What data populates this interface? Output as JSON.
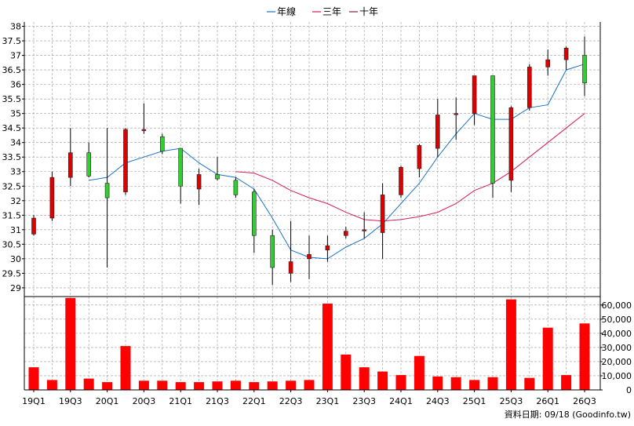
{
  "legend": [
    {
      "name": "年線",
      "color": "#1a73c8"
    },
    {
      "name": "三年",
      "color": "#d81b60"
    },
    {
      "name": "十年",
      "color": "#8b1a4a"
    }
  ],
  "footer_text": "資料日期: 09/18 (Goodinfo.tw)",
  "colors": {
    "up": "#dd0000",
    "down": "#33cc33",
    "volume": "#ff0000",
    "grid": "#999999",
    "frame": "#000000"
  },
  "chart_data": [
    {
      "type": "candlestick",
      "y_ticks": [
        29,
        29.5,
        30,
        30.5,
        31,
        31.5,
        32,
        32.5,
        33,
        33.5,
        34,
        34.5,
        35,
        35.5,
        36,
        36.5,
        37,
        37.5,
        38
      ],
      "ylim": [
        28.7,
        38.15
      ],
      "x_tick_labels": [
        "19Q1",
        "19Q3",
        "20Q1",
        "20Q3",
        "21Q1",
        "21Q3",
        "22Q1",
        "22Q3",
        "23Q1",
        "23Q3",
        "24Q1",
        "24Q3",
        "25Q1",
        "25Q3",
        "26Q1",
        "26Q3"
      ],
      "periods": [
        "19Q1",
        "19Q2",
        "19Q3",
        "19Q4",
        "20Q1",
        "20Q2",
        "20Q3",
        "20Q4",
        "21Q1",
        "21Q2",
        "21Q3",
        "21Q4",
        "22Q1",
        "22Q2",
        "22Q3",
        "22Q4",
        "23Q1",
        "23Q2",
        "23Q3",
        "23Q4",
        "24Q1",
        "24Q2",
        "24Q3",
        "24Q4",
        "25Q1",
        "25Q2",
        "25Q3",
        "25Q4",
        "26Q1",
        "26Q2",
        "26Q3"
      ],
      "candles": [
        {
          "o": 30.85,
          "h": 31.5,
          "l": 30.8,
          "c": 31.4
        },
        {
          "o": 31.4,
          "h": 33.0,
          "l": 31.3,
          "c": 32.8
        },
        {
          "o": 32.8,
          "h": 34.5,
          "l": 32.5,
          "c": 33.65
        },
        {
          "o": 33.65,
          "h": 34.0,
          "l": 32.8,
          "c": 32.85
        },
        {
          "o": 32.6,
          "h": 34.5,
          "l": 29.7,
          "c": 32.1
        },
        {
          "o": 32.3,
          "h": 34.5,
          "l": 32.2,
          "c": 34.45
        },
        {
          "o": 34.45,
          "h": 35.35,
          "l": 34.3,
          "c": 34.45
        },
        {
          "o": 34.2,
          "h": 34.3,
          "l": 33.6,
          "c": 33.7
        },
        {
          "o": 33.8,
          "h": 33.8,
          "l": 31.9,
          "c": 32.5
        },
        {
          "o": 32.4,
          "h": 33.1,
          "l": 31.85,
          "c": 32.9
        },
        {
          "o": 32.9,
          "h": 33.5,
          "l": 32.7,
          "c": 32.75
        },
        {
          "o": 32.7,
          "h": 32.8,
          "l": 32.1,
          "c": 32.2
        },
        {
          "o": 32.3,
          "h": 32.4,
          "l": 30.2,
          "c": 30.8
        },
        {
          "o": 30.8,
          "h": 31.0,
          "l": 29.1,
          "c": 29.7
        },
        {
          "o": 29.5,
          "h": 31.3,
          "l": 29.2,
          "c": 29.9
        },
        {
          "o": 30.0,
          "h": 30.8,
          "l": 29.3,
          "c": 30.15
        },
        {
          "o": 30.3,
          "h": 30.8,
          "l": 29.9,
          "c": 30.45
        },
        {
          "o": 30.8,
          "h": 31.1,
          "l": 30.7,
          "c": 30.95
        },
        {
          "o": 31.0,
          "h": 31.6,
          "l": 30.7,
          "c": 31.0
        },
        {
          "o": 30.9,
          "h": 32.6,
          "l": 30.0,
          "c": 32.2
        },
        {
          "o": 32.2,
          "h": 33.2,
          "l": 32.1,
          "c": 33.15
        },
        {
          "o": 33.1,
          "h": 33.95,
          "l": 32.8,
          "c": 33.9
        },
        {
          "o": 33.8,
          "h": 35.5,
          "l": 33.5,
          "c": 34.95
        },
        {
          "o": 35.0,
          "h": 35.55,
          "l": 34.1,
          "c": 35.0
        },
        {
          "o": 35.0,
          "h": 36.3,
          "l": 34.6,
          "c": 36.3
        },
        {
          "o": 36.3,
          "h": 36.3,
          "l": 32.1,
          "c": 32.6
        },
        {
          "o": 32.7,
          "h": 35.25,
          "l": 32.3,
          "c": 35.2
        },
        {
          "o": 35.2,
          "h": 36.7,
          "l": 35.1,
          "c": 36.6
        },
        {
          "o": 36.6,
          "h": 37.2,
          "l": 36.3,
          "c": 36.85
        },
        {
          "o": 36.85,
          "h": 37.3,
          "l": 36.5,
          "c": 37.25
        },
        {
          "o": 37.0,
          "h": 37.65,
          "l": 35.6,
          "c": 36.05
        }
      ],
      "series": [
        {
          "name": "年線",
          "color": "#1a73c8",
          "start": 3,
          "values": [
            32.7,
            32.8,
            33.3,
            33.5,
            33.7,
            33.8,
            33.3,
            32.9,
            32.8,
            32.4,
            31.4,
            30.3,
            30.05,
            30.0,
            30.4,
            30.7,
            31.2,
            31.9,
            32.6,
            33.5,
            34.3,
            35.0,
            34.8,
            34.8,
            35.2,
            35.3,
            36.5,
            36.7
          ]
        },
        {
          "name": "三年",
          "color": "#d81b60",
          "start": 11,
          "values": [
            33.0,
            32.95,
            32.7,
            32.35,
            32.1,
            31.9,
            31.6,
            31.35,
            31.3,
            31.35,
            31.45,
            31.6,
            31.9,
            32.35,
            32.6,
            33.0,
            33.5,
            34.0,
            34.5,
            35.0
          ]
        }
      ]
    },
    {
      "type": "bar",
      "y_ticks": [
        0,
        10000,
        20000,
        30000,
        40000,
        50000,
        60000
      ],
      "y_tick_labels": [
        "0",
        "10,000",
        "20,000",
        "30,000",
        "40,000",
        "50,000",
        "60,000"
      ],
      "ylim": [
        0,
        66000
      ],
      "values": [
        16000,
        7000,
        65000,
        8000,
        5500,
        31000,
        6500,
        6500,
        5500,
        5500,
        6000,
        6500,
        5500,
        6000,
        6500,
        7000,
        61000,
        25000,
        16000,
        13000,
        10500,
        24000,
        9500,
        9000,
        7000,
        9000,
        64000,
        8500,
        44000,
        10500,
        47000
      ]
    }
  ]
}
